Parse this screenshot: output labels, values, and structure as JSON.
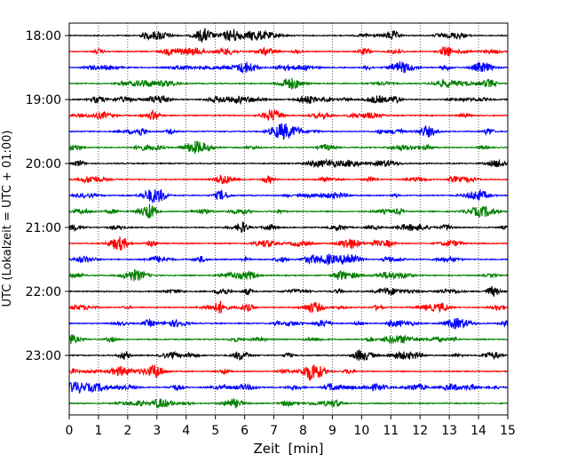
{
  "chart_data": {
    "type": "line",
    "title": "",
    "xlabel": "Zeit  [min]",
    "ylabel": "UTC (Lokalzeit = UTC + 01:00)",
    "xlim": [
      0,
      15
    ],
    "x_ticks": [
      0,
      1,
      2,
      3,
      4,
      5,
      6,
      7,
      8,
      9,
      10,
      11,
      12,
      13,
      14,
      15
    ],
    "x_tick_labels": [
      "0",
      "1",
      "2",
      "3",
      "4",
      "5",
      "6",
      "7",
      "8",
      "9",
      "10",
      "11",
      "12",
      "13",
      "14",
      "15"
    ],
    "y_ticks": [
      "18:00",
      "19:00",
      "20:00",
      "21:00",
      "22:00",
      "23:00"
    ],
    "trace_start_utc": [
      "18:00",
      "18:15",
      "18:30",
      "18:45",
      "19:00",
      "19:15",
      "19:30",
      "19:45",
      "20:00",
      "20:15",
      "20:30",
      "20:45",
      "21:00",
      "21:15",
      "21:30",
      "21:45",
      "22:00",
      "22:15",
      "22:30",
      "22:45",
      "23:00",
      "23:15",
      "23:30",
      "23:45"
    ],
    "trace_color_cycle": [
      "#000000",
      "#ff0000",
      "#0000ff",
      "#008000"
    ],
    "vertical_grid": "dotted",
    "legend": false
  }
}
